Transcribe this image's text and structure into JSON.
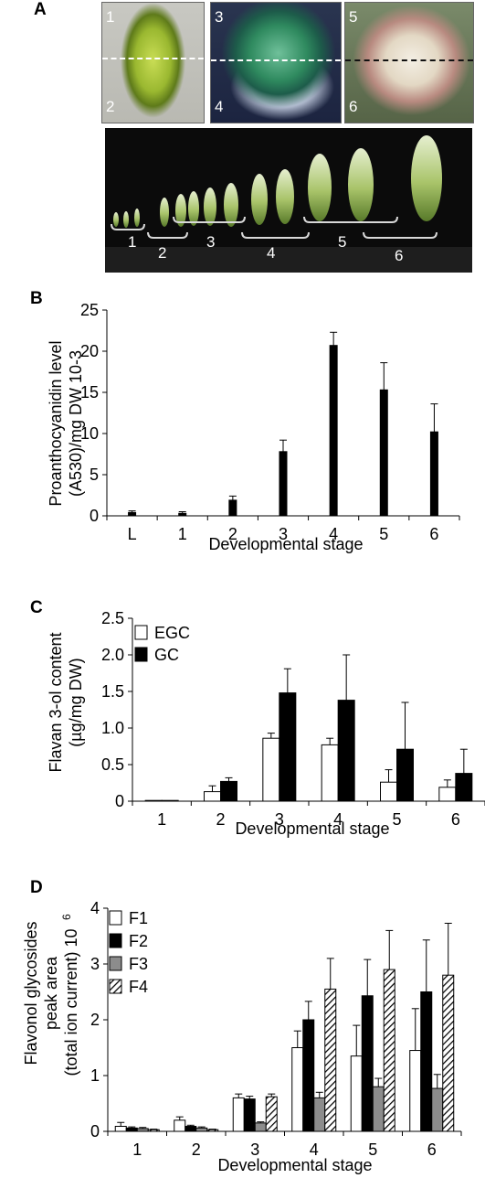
{
  "panel_labels": {
    "a": "A",
    "b": "B",
    "c": "C",
    "d": "D"
  },
  "panel_a": {
    "photo_numbers": [
      "1",
      "2",
      "3",
      "4",
      "5",
      "6"
    ],
    "strip_numbers": [
      "1",
      "2",
      "3",
      "4",
      "5",
      "6"
    ]
  },
  "chart_data": [
    {
      "type": "bar",
      "panel": "B",
      "categories": [
        "L",
        "1",
        "2",
        "3",
        "4",
        "5",
        "6"
      ],
      "series": [
        {
          "values": [
            0.4,
            0.3,
            1.9,
            7.8,
            20.7,
            15.3,
            10.2
          ],
          "errors": [
            0.2,
            0.2,
            0.5,
            1.4,
            1.6,
            3.3,
            3.4
          ],
          "color": "#000000"
        }
      ],
      "xlabel": "Developmental stage",
      "ylabel_lines": [
        "Proanthocyanidin level",
        "(A530)/mg DW 10-3"
      ],
      "ylim": [
        0,
        25
      ],
      "yticks": [
        "0",
        "5",
        "10",
        "15",
        "20",
        "25"
      ],
      "grid": false
    },
    {
      "type": "bar",
      "panel": "C",
      "categories": [
        "1",
        "2",
        "3",
        "4",
        "5",
        "6"
      ],
      "series": [
        {
          "name": "EGC",
          "values": [
            0.005,
            0.13,
            0.86,
            0.77,
            0.26,
            0.19
          ],
          "errors": [
            0,
            0.08,
            0.07,
            0.09,
            0.17,
            0.1
          ],
          "fill": "white"
        },
        {
          "name": "GC",
          "values": [
            0.01,
            0.27,
            1.48,
            1.38,
            0.71,
            0.38
          ],
          "errors": [
            0,
            0.05,
            0.33,
            0.62,
            0.64,
            0.33
          ],
          "fill": "black"
        }
      ],
      "xlabel": "Developmental stage",
      "ylabel_lines": [
        "Flavan 3-ol content",
        "(µg/mg DW)"
      ],
      "ylim": [
        0,
        2.5
      ],
      "yticks": [
        "0",
        "0.5",
        "1.0",
        "1.5",
        "2.0",
        "2.5"
      ],
      "legend": "top-left",
      "grid": false
    },
    {
      "type": "bar",
      "panel": "D",
      "categories": [
        "1",
        "2",
        "3",
        "4",
        "5",
        "6"
      ],
      "series": [
        {
          "name": "F1",
          "values": [
            0.09,
            0.2,
            0.6,
            1.5,
            1.35,
            1.45
          ],
          "errors": [
            0.07,
            0.06,
            0.07,
            0.3,
            0.55,
            0.75
          ],
          "fill": "white"
        },
        {
          "name": "F2",
          "values": [
            0.06,
            0.09,
            0.58,
            2.0,
            2.43,
            2.5
          ],
          "errors": [
            0.02,
            0.02,
            0.05,
            0.33,
            0.65,
            0.93
          ],
          "fill": "black"
        },
        {
          "name": "F3",
          "values": [
            0.05,
            0.06,
            0.15,
            0.6,
            0.8,
            0.77
          ],
          "errors": [
            0.02,
            0.02,
            0.02,
            0.1,
            0.15,
            0.25
          ],
          "fill": "gray"
        },
        {
          "name": "F4",
          "values": [
            0.03,
            0.03,
            0.62,
            2.55,
            2.9,
            2.8
          ],
          "errors": [
            0.01,
            0.01,
            0.05,
            0.55,
            0.7,
            0.93
          ],
          "fill": "hatch"
        }
      ],
      "xlabel": "Developmental stage",
      "ylabel_lines": [
        "Flavonol glycosides",
        "peak area",
        "(total ion current) 10"
      ],
      "ylabel_superscript": "6",
      "ylim": [
        0,
        4
      ],
      "yticks": [
        "0",
        "1",
        "2",
        "3",
        "4"
      ],
      "legend": "top-left",
      "grid": false
    }
  ]
}
